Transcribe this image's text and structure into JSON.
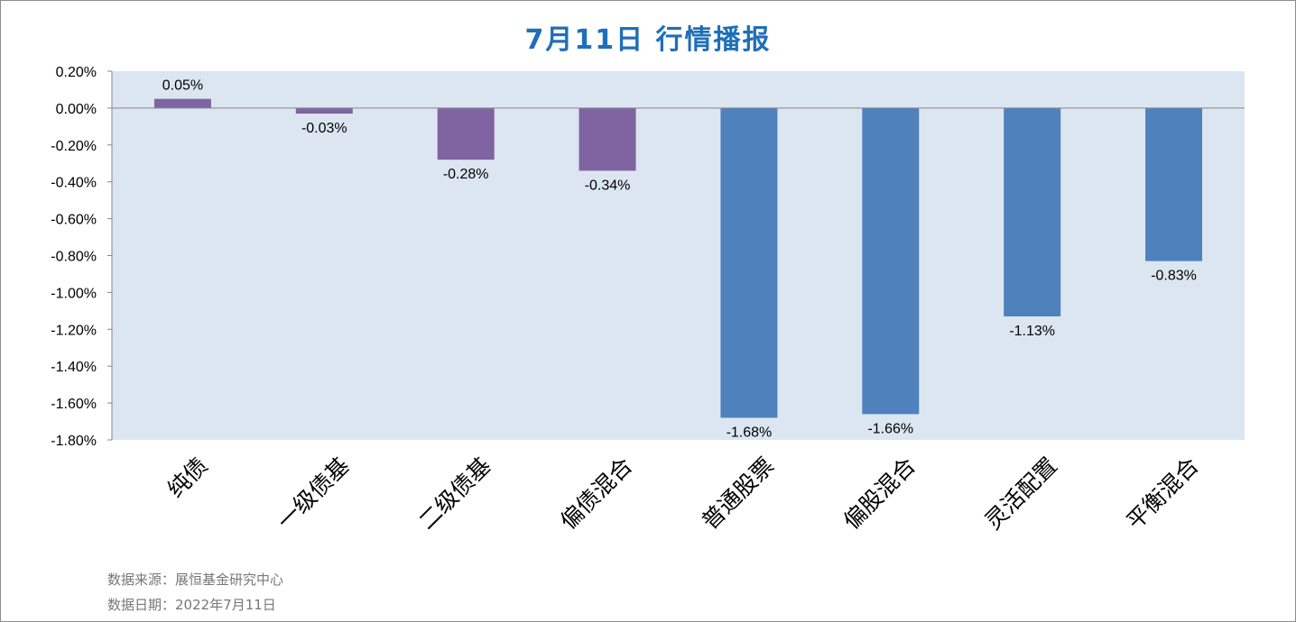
{
  "title": "7月11日  行情播报",
  "notes": {
    "source": "数据来源：展恒基金研究中心",
    "date": "数据日期：2022年7月11日"
  },
  "colors": {
    "plot_bg": "#dce6f1",
    "bond_bar": "#8064a2",
    "equity_bar": "#4f81bd",
    "title": "#1f6fb8"
  },
  "chart_data": {
    "type": "bar",
    "title": "7月11日  行情播报",
    "categories": [
      "纯债",
      "一级债基",
      "二级债基",
      "偏债混合",
      "普通股票",
      "偏股混合",
      "灵活配置",
      "平衡混合"
    ],
    "values": [
      0.05,
      -0.03,
      -0.28,
      -0.34,
      -1.68,
      -1.66,
      -1.13,
      -0.83
    ],
    "data_labels": [
      "0.05%",
      "-0.03%",
      "-0.28%",
      "-0.34%",
      "-1.68%",
      "-1.66%",
      "-1.13%",
      "-0.83%"
    ],
    "bar_colors": [
      "#8064a2",
      "#8064a2",
      "#8064a2",
      "#8064a2",
      "#4f81bd",
      "#4f81bd",
      "#4f81bd",
      "#4f81bd"
    ],
    "ylim": [
      -1.8,
      0.2
    ],
    "yticks": [
      0.2,
      0.0,
      -0.2,
      -0.4,
      -0.6,
      -0.8,
      -1.0,
      -1.2,
      -1.4,
      -1.6,
      -1.8
    ],
    "ytick_labels": [
      "0.20%",
      "0.00%",
      "-0.20%",
      "-0.40%",
      "-0.60%",
      "-0.80%",
      "-1.00%",
      "-1.20%",
      "-1.40%",
      "-1.60%",
      "-1.80%"
    ],
    "grid": false,
    "legend": "none"
  }
}
